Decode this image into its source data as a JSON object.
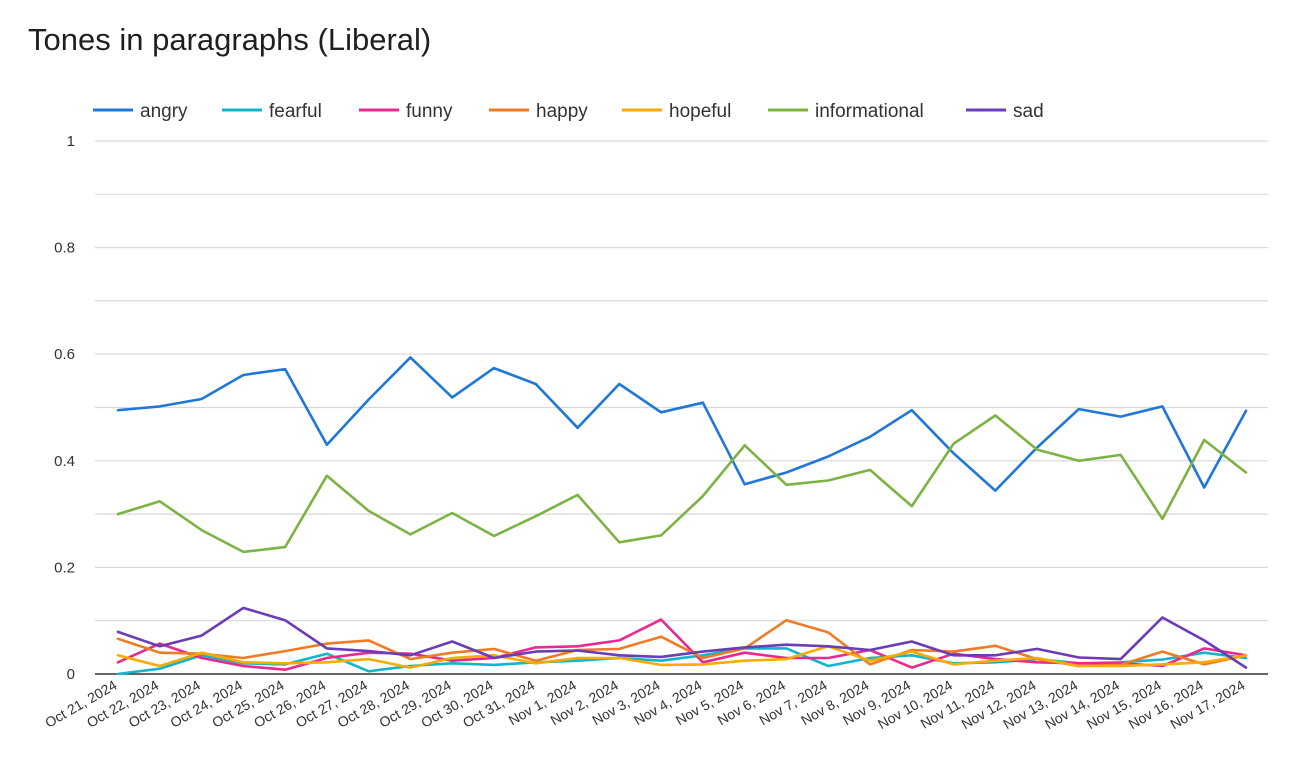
{
  "chart_data": {
    "type": "line",
    "title": "Tones in paragraphs (Liberal)",
    "xlabel": "",
    "ylabel": "",
    "ylim": [
      0,
      1
    ],
    "yticks": [
      "0",
      "0.2",
      "0.4",
      "0.6",
      "0.8",
      "1"
    ],
    "ytick_values": [
      0,
      0.2,
      0.4,
      0.6,
      0.8,
      1
    ],
    "grid": true,
    "legend_position": "top",
    "categories": [
      "Oct 21, 2024",
      "Oct 22, 2024",
      "Oct 23, 2024",
      "Oct 24, 2024",
      "Oct 25, 2024",
      "Oct 26, 2024",
      "Oct 27, 2024",
      "Oct 28, 2024",
      "Oct 29, 2024",
      "Oct 30, 2024",
      "Oct 31, 2024",
      "Nov 1, 2024",
      "Nov 2, 2024",
      "Nov 3, 2024",
      "Nov 4, 2024",
      "Nov 5, 2024",
      "Nov 6, 2024",
      "Nov 7, 2024",
      "Nov 8, 2024",
      "Nov 9, 2024",
      "Nov 10, 2024",
      "Nov 11, 2024",
      "Nov 12, 2024",
      "Nov 13, 2024",
      "Nov 14, 2024",
      "Nov 15, 2024",
      "Nov 16, 2024",
      "Nov 17, 2024"
    ],
    "series": [
      {
        "name": "angry",
        "color": "#1f77d9",
        "values": [
          0.495,
          0.502,
          0.516,
          0.561,
          0.572,
          0.43,
          0.515,
          0.594,
          0.519,
          0.574,
          0.544,
          0.462,
          0.544,
          0.491,
          0.509,
          0.356,
          0.378,
          0.408,
          0.445,
          0.495,
          0.414,
          0.344,
          0.425,
          0.497,
          0.483,
          0.502,
          0.35,
          0.494
        ]
      },
      {
        "name": "fearful",
        "color": "#12b5cb",
        "values": [
          0.0,
          0.01,
          0.035,
          0.02,
          0.018,
          0.038,
          0.005,
          0.015,
          0.02,
          0.017,
          0.022,
          0.025,
          0.03,
          0.025,
          0.035,
          0.048,
          0.048,
          0.015,
          0.03,
          0.035,
          0.02,
          0.022,
          0.028,
          0.02,
          0.022,
          0.027,
          0.04,
          0.03
        ]
      },
      {
        "name": "funny",
        "color": "#e8298f",
        "values": [
          0.022,
          0.057,
          0.03,
          0.015,
          0.008,
          0.03,
          0.04,
          0.038,
          0.025,
          0.03,
          0.05,
          0.052,
          0.063,
          0.102,
          0.022,
          0.04,
          0.03,
          0.03,
          0.045,
          0.012,
          0.038,
          0.028,
          0.022,
          0.02,
          0.02,
          0.015,
          0.048,
          0.035
        ]
      },
      {
        "name": "happy",
        "color": "#f07b24",
        "values": [
          0.066,
          0.04,
          0.038,
          0.03,
          0.043,
          0.057,
          0.063,
          0.028,
          0.04,
          0.047,
          0.025,
          0.045,
          0.047,
          0.07,
          0.03,
          0.048,
          0.101,
          0.078,
          0.018,
          0.045,
          0.042,
          0.053,
          0.028,
          0.015,
          0.017,
          0.042,
          0.018,
          0.035
        ]
      },
      {
        "name": "hopeful",
        "color": "#f9ab00",
        "values": [
          0.035,
          0.015,
          0.04,
          0.022,
          0.02,
          0.022,
          0.028,
          0.012,
          0.03,
          0.035,
          0.02,
          0.03,
          0.03,
          0.017,
          0.018,
          0.025,
          0.028,
          0.052,
          0.025,
          0.042,
          0.018,
          0.025,
          0.03,
          0.015,
          0.015,
          0.018,
          0.022,
          0.035
        ]
      },
      {
        "name": "informational",
        "color": "#7cb342",
        "values": [
          0.3,
          0.324,
          0.27,
          0.229,
          0.238,
          0.372,
          0.306,
          0.262,
          0.302,
          0.259,
          0.296,
          0.336,
          0.247,
          0.26,
          0.334,
          0.429,
          0.355,
          0.363,
          0.383,
          0.315,
          0.432,
          0.485,
          0.421,
          0.4,
          0.411,
          0.291,
          0.439,
          0.378
        ]
      },
      {
        "name": "sad",
        "color": "#6a3cb8",
        "values": [
          0.079,
          0.052,
          0.072,
          0.124,
          0.101,
          0.048,
          0.043,
          0.035,
          0.061,
          0.03,
          0.042,
          0.044,
          0.035,
          0.032,
          0.042,
          0.05,
          0.055,
          0.052,
          0.045,
          0.061,
          0.035,
          0.035,
          0.047,
          0.031,
          0.028,
          0.106,
          0.063,
          0.012
        ]
      }
    ]
  }
}
